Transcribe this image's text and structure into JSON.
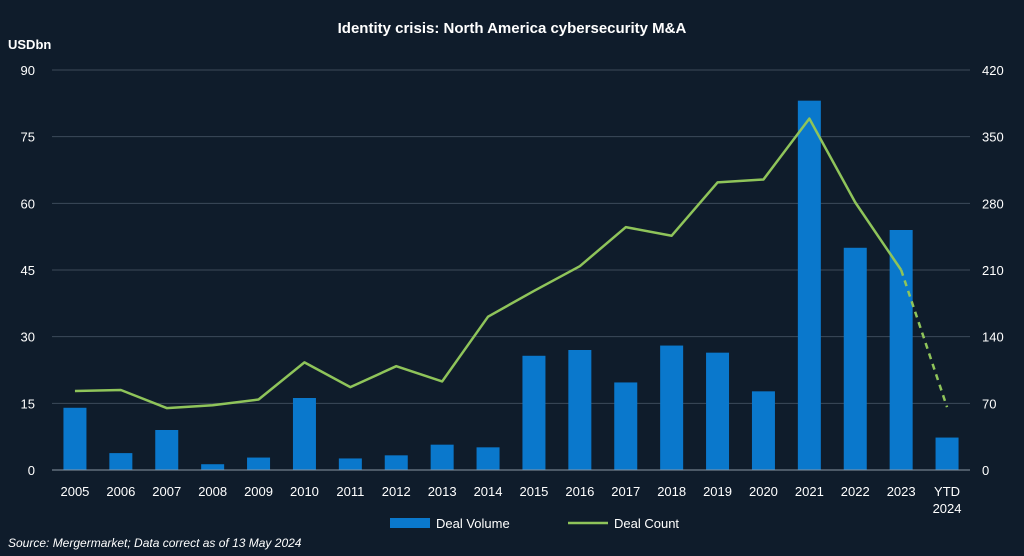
{
  "chart_data": {
    "type": "bar",
    "title": "Identity crisis: North America cybersecurity M&A",
    "ylabel": "USDbn",
    "categories": [
      "2005",
      "2006",
      "2007",
      "2008",
      "2009",
      "2010",
      "2011",
      "2012",
      "2013",
      "2014",
      "2015",
      "2016",
      "2017",
      "2018",
      "2019",
      "2020",
      "2021",
      "2022",
      "2023",
      "YTD\n2024"
    ],
    "y_left": {
      "lim": [
        0,
        90
      ],
      "ticks": [
        0,
        15,
        30,
        45,
        60,
        75,
        90
      ]
    },
    "y_right": {
      "lim": [
        0,
        420
      ],
      "ticks": [
        0,
        70,
        140,
        210,
        280,
        350,
        420
      ]
    },
    "grid": true,
    "legend_position": "bottom-center",
    "series": [
      {
        "name": "Deal Volume",
        "type": "bar",
        "axis": "left",
        "color": "#0a78cc",
        "values": [
          14.0,
          3.8,
          9.0,
          1.3,
          2.8,
          16.2,
          2.6,
          3.3,
          5.7,
          5.1,
          25.7,
          27.0,
          19.7,
          28.0,
          26.4,
          17.7,
          83.1,
          50.0,
          54.0,
          7.3
        ]
      },
      {
        "name": "Deal Count",
        "type": "line",
        "axis": "right",
        "color": "#8fc45a",
        "values": [
          83,
          84,
          65,
          68,
          74,
          113,
          87,
          109,
          93,
          161,
          188,
          214,
          255,
          246,
          302,
          305,
          369,
          281,
          210,
          66
        ],
        "dashed_last_segment": true
      }
    ],
    "source": "Source: Mergermarket; Data correct as of 13 May 2024"
  }
}
